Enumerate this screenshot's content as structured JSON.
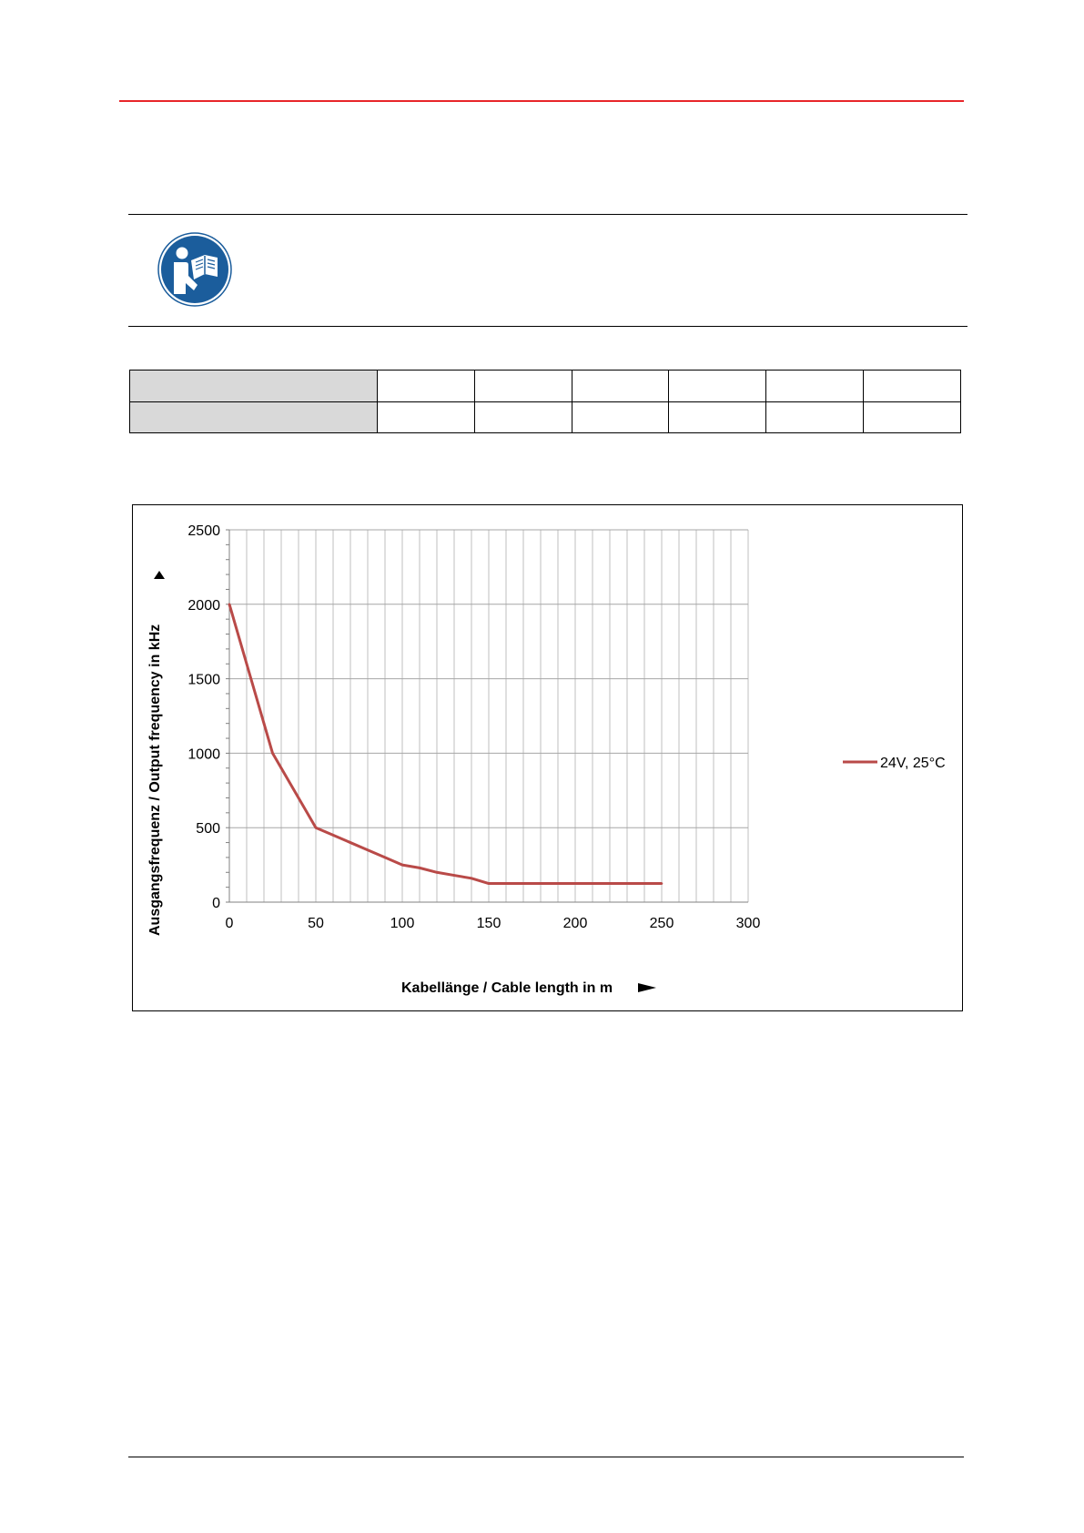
{
  "colors": {
    "header_rule": "#e8262a",
    "icon_blue": "#1b5d9c",
    "table_header_bg": "#d9d9d9",
    "series_line": "#b94a48",
    "grid": "#bfbfbf"
  },
  "notice": {
    "icon": "read-manual-icon"
  },
  "spec_table": {
    "rows": [
      [
        "",
        "",
        "",
        "",
        "",
        "",
        ""
      ],
      [
        "",
        "",
        "",
        "",
        "",
        "",
        ""
      ]
    ]
  },
  "chart_data": {
    "type": "line",
    "xlabel": "Kabellänge / Cable length in m",
    "ylabel": "Ausgangsfrequenz / Output frequency in kHz",
    "xlim": [
      0,
      300
    ],
    "ylim": [
      0,
      2500
    ],
    "x_ticks": [
      "0",
      "50",
      "100",
      "150",
      "200",
      "250",
      "300"
    ],
    "y_ticks": [
      "0",
      "500",
      "1000",
      "1500",
      "2000",
      "2500"
    ],
    "grid": true,
    "legend_position": "right",
    "series": [
      {
        "name": "24V, 25°C",
        "color": "#b94a48",
        "x": [
          0,
          10,
          20,
          25,
          30,
          40,
          50,
          60,
          70,
          80,
          90,
          100,
          110,
          120,
          130,
          140,
          150,
          200,
          250
        ],
        "y": [
          2000,
          1600,
          1200,
          1000,
          900,
          700,
          500,
          450,
          400,
          350,
          300,
          250,
          230,
          200,
          180,
          160,
          125,
          125,
          125
        ]
      }
    ]
  }
}
